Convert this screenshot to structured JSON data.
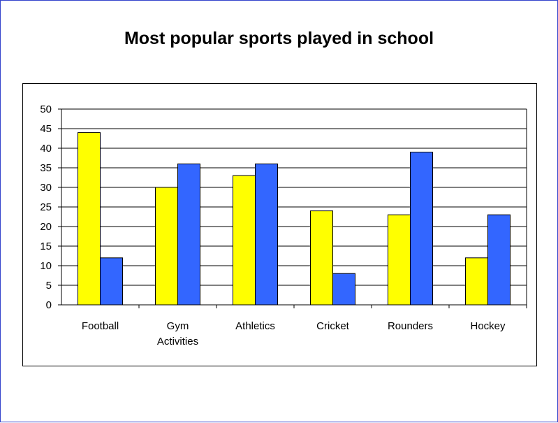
{
  "title": "Most popular sports played in school",
  "chart_data": {
    "type": "bar",
    "title": "Most popular sports played in school",
    "xlabel": "",
    "ylabel": "",
    "categories": [
      [
        "Football"
      ],
      [
        "Gym",
        "Activities"
      ],
      [
        "Athletics"
      ],
      [
        "Cricket"
      ],
      [
        "Rounders"
      ],
      [
        "Hockey"
      ]
    ],
    "series": [
      {
        "color": "#ffff00",
        "values": [
          44,
          30,
          33,
          24,
          23,
          12
        ]
      },
      {
        "color": "#3366ff",
        "values": [
          12,
          36,
          36,
          8,
          39,
          23
        ]
      }
    ],
    "ylim": [
      0,
      50
    ],
    "yticks": [
      0,
      5,
      10,
      15,
      20,
      25,
      30,
      35,
      40,
      45,
      50
    ],
    "grid": true,
    "legend": "none"
  }
}
